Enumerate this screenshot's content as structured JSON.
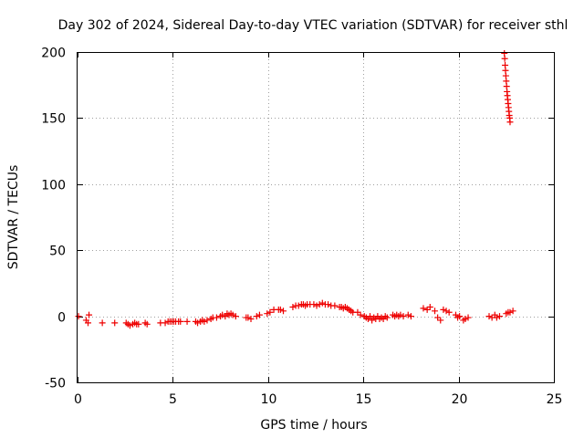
{
  "chart_data": {
    "type": "scatter",
    "title": "Day 302 of 2024, Sidereal Day-to-day VTEC variation (SDTVAR) for receiver sthl",
    "xlabel": "GPS time / hours",
    "ylabel": "SDTVAR / TECUs",
    "xlim": [
      0,
      25
    ],
    "ylim": [
      -50,
      200
    ],
    "xticks": [
      "0",
      "5",
      "10",
      "15",
      "20",
      "25"
    ],
    "yticks": [
      "-50",
      "0",
      "50",
      "100",
      "150",
      "200"
    ],
    "grid": true,
    "marker": "plus",
    "color": "#ee0000",
    "series": [
      {
        "name": "SDTVAR",
        "x": [
          0.05,
          0.45,
          0.55,
          0.6,
          1.3,
          1.95,
          2.55,
          2.65,
          2.75,
          2.9,
          3.0,
          3.1,
          3.2,
          3.55,
          3.65,
          4.35,
          4.6,
          4.75,
          4.85,
          4.95,
          5.05,
          5.15,
          5.3,
          5.4,
          5.75,
          6.2,
          6.3,
          6.45,
          6.55,
          6.65,
          6.8,
          7.0,
          7.1,
          7.3,
          7.5,
          7.6,
          7.75,
          7.85,
          7.95,
          8.05,
          8.15,
          8.3,
          8.85,
          8.95,
          9.1,
          9.4,
          9.55,
          9.95,
          10.1,
          10.3,
          10.55,
          10.65,
          10.8,
          11.3,
          11.45,
          11.6,
          11.75,
          11.85,
          11.95,
          12.05,
          12.2,
          12.4,
          12.55,
          12.7,
          12.85,
          13.0,
          13.15,
          13.3,
          13.5,
          13.75,
          13.85,
          13.95,
          14.05,
          14.15,
          14.25,
          14.35,
          14.45,
          14.7,
          14.85,
          15.05,
          15.15,
          15.25,
          15.35,
          15.45,
          15.55,
          15.65,
          15.75,
          15.85,
          15.95,
          16.05,
          16.15,
          16.25,
          16.55,
          16.65,
          16.75,
          16.85,
          16.95,
          17.1,
          17.35,
          17.5,
          18.15,
          18.35,
          18.5,
          18.75,
          18.9,
          19.05,
          19.2,
          19.35,
          19.5,
          19.85,
          19.95,
          20.05,
          20.25,
          20.35,
          20.5,
          21.6,
          21.75,
          21.9,
          22.0,
          22.15,
          22.5,
          22.6,
          22.7,
          22.85,
          22.4,
          22.42,
          22.44,
          22.46,
          22.48,
          22.5,
          22.52,
          22.54,
          22.56,
          22.58,
          22.6,
          22.62,
          22.64,
          22.66,
          22.68,
          22.7
        ],
        "y": [
          0,
          -3,
          -5,
          1,
          -5,
          -5,
          -5,
          -6,
          -7,
          -6,
          -5,
          -6,
          -6,
          -5,
          -6,
          -5,
          -5,
          -4,
          -4,
          -4,
          -4,
          -4,
          -4,
          -4,
          -4,
          -4,
          -5,
          -4,
          -3,
          -4,
          -3,
          -2,
          -1,
          -1,
          0,
          1,
          0,
          2,
          1,
          2,
          1,
          0,
          -1,
          -1,
          -2,
          0,
          1,
          2,
          3,
          5,
          5,
          5,
          4,
          7,
          8,
          8,
          9,
          9,
          8,
          9,
          9,
          9,
          8,
          9,
          10,
          9,
          9,
          8,
          8,
          7,
          7,
          6,
          7,
          6,
          5,
          4,
          3,
          3,
          1,
          0,
          -1,
          -2,
          0,
          -3,
          -1,
          -2,
          0,
          -2,
          -1,
          -2,
          0,
          -1,
          1,
          0,
          1,
          0,
          1,
          0,
          1,
          0,
          6,
          5,
          7,
          4,
          -1,
          -3,
          5,
          4,
          3,
          1,
          -1,
          0,
          -3,
          -2,
          -1,
          0,
          -1,
          1,
          -1,
          0,
          2,
          3,
          3,
          4,
          199,
          195,
          190,
          186,
          182,
          178,
          174,
          170,
          167,
          164,
          161,
          158,
          155,
          152,
          150,
          147
        ]
      }
    ]
  }
}
